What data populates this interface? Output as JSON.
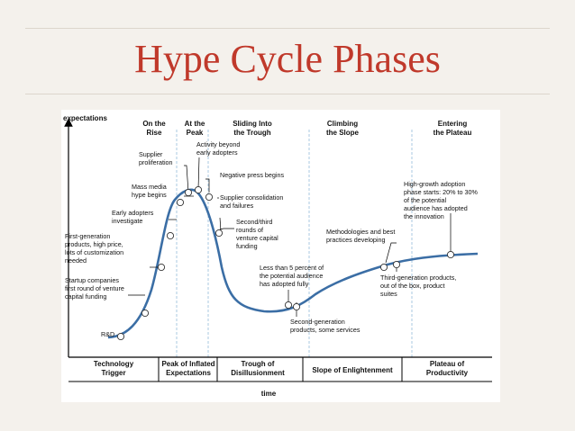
{
  "slide": {
    "title": "Hype Cycle Phases",
    "accent_color": "#c0392b"
  },
  "diagram": {
    "y_axis_label": "expectations",
    "x_axis_label": "time",
    "phase_headers": [
      [
        "On the",
        "Rise"
      ],
      [
        "At the",
        "Peak"
      ],
      [
        "Sliding Into",
        "the Trough"
      ],
      [
        "Climbing",
        "the Slope"
      ],
      [
        "Entering",
        "the Plateau"
      ]
    ],
    "bottom_phases": [
      [
        "Technology",
        "Trigger"
      ],
      [
        "Peak of Inflated",
        "Expectations"
      ],
      [
        "Trough of",
        "Disillusionment"
      ],
      [
        "Slope of Enlightenment"
      ],
      [
        "Plateau of",
        "Productivity"
      ]
    ],
    "annotations": [
      [
        "R&D"
      ],
      [
        "Startup companies",
        "first round of venture",
        "capital funding"
      ],
      [
        "First-generation",
        "products, high price,",
        "lots of customization",
        "needed"
      ],
      [
        "Early adopters",
        "investigate"
      ],
      [
        "Mass media",
        "hype begins"
      ],
      [
        "Supplier",
        "proliferation"
      ],
      [
        "Activity beyond",
        "early adopters"
      ],
      [
        "Negative press begins"
      ],
      [
        "Supplier consolidation",
        "and failures"
      ],
      [
        "Second/third",
        "rounds of",
        "venture capital",
        "funding"
      ],
      [
        "Less than 5 percent of",
        "the potential audience",
        "has adopted fully"
      ],
      [
        "Second-generation",
        "products, some services"
      ],
      [
        "Methodologies and best",
        "practices developing"
      ],
      [
        "Third-generation products,",
        "out of the box, product",
        "suites"
      ],
      [
        "High-growth adoption",
        "phase starts: 20% to 30%",
        "of the potential",
        "audience has adopted",
        "the innovation"
      ]
    ]
  }
}
